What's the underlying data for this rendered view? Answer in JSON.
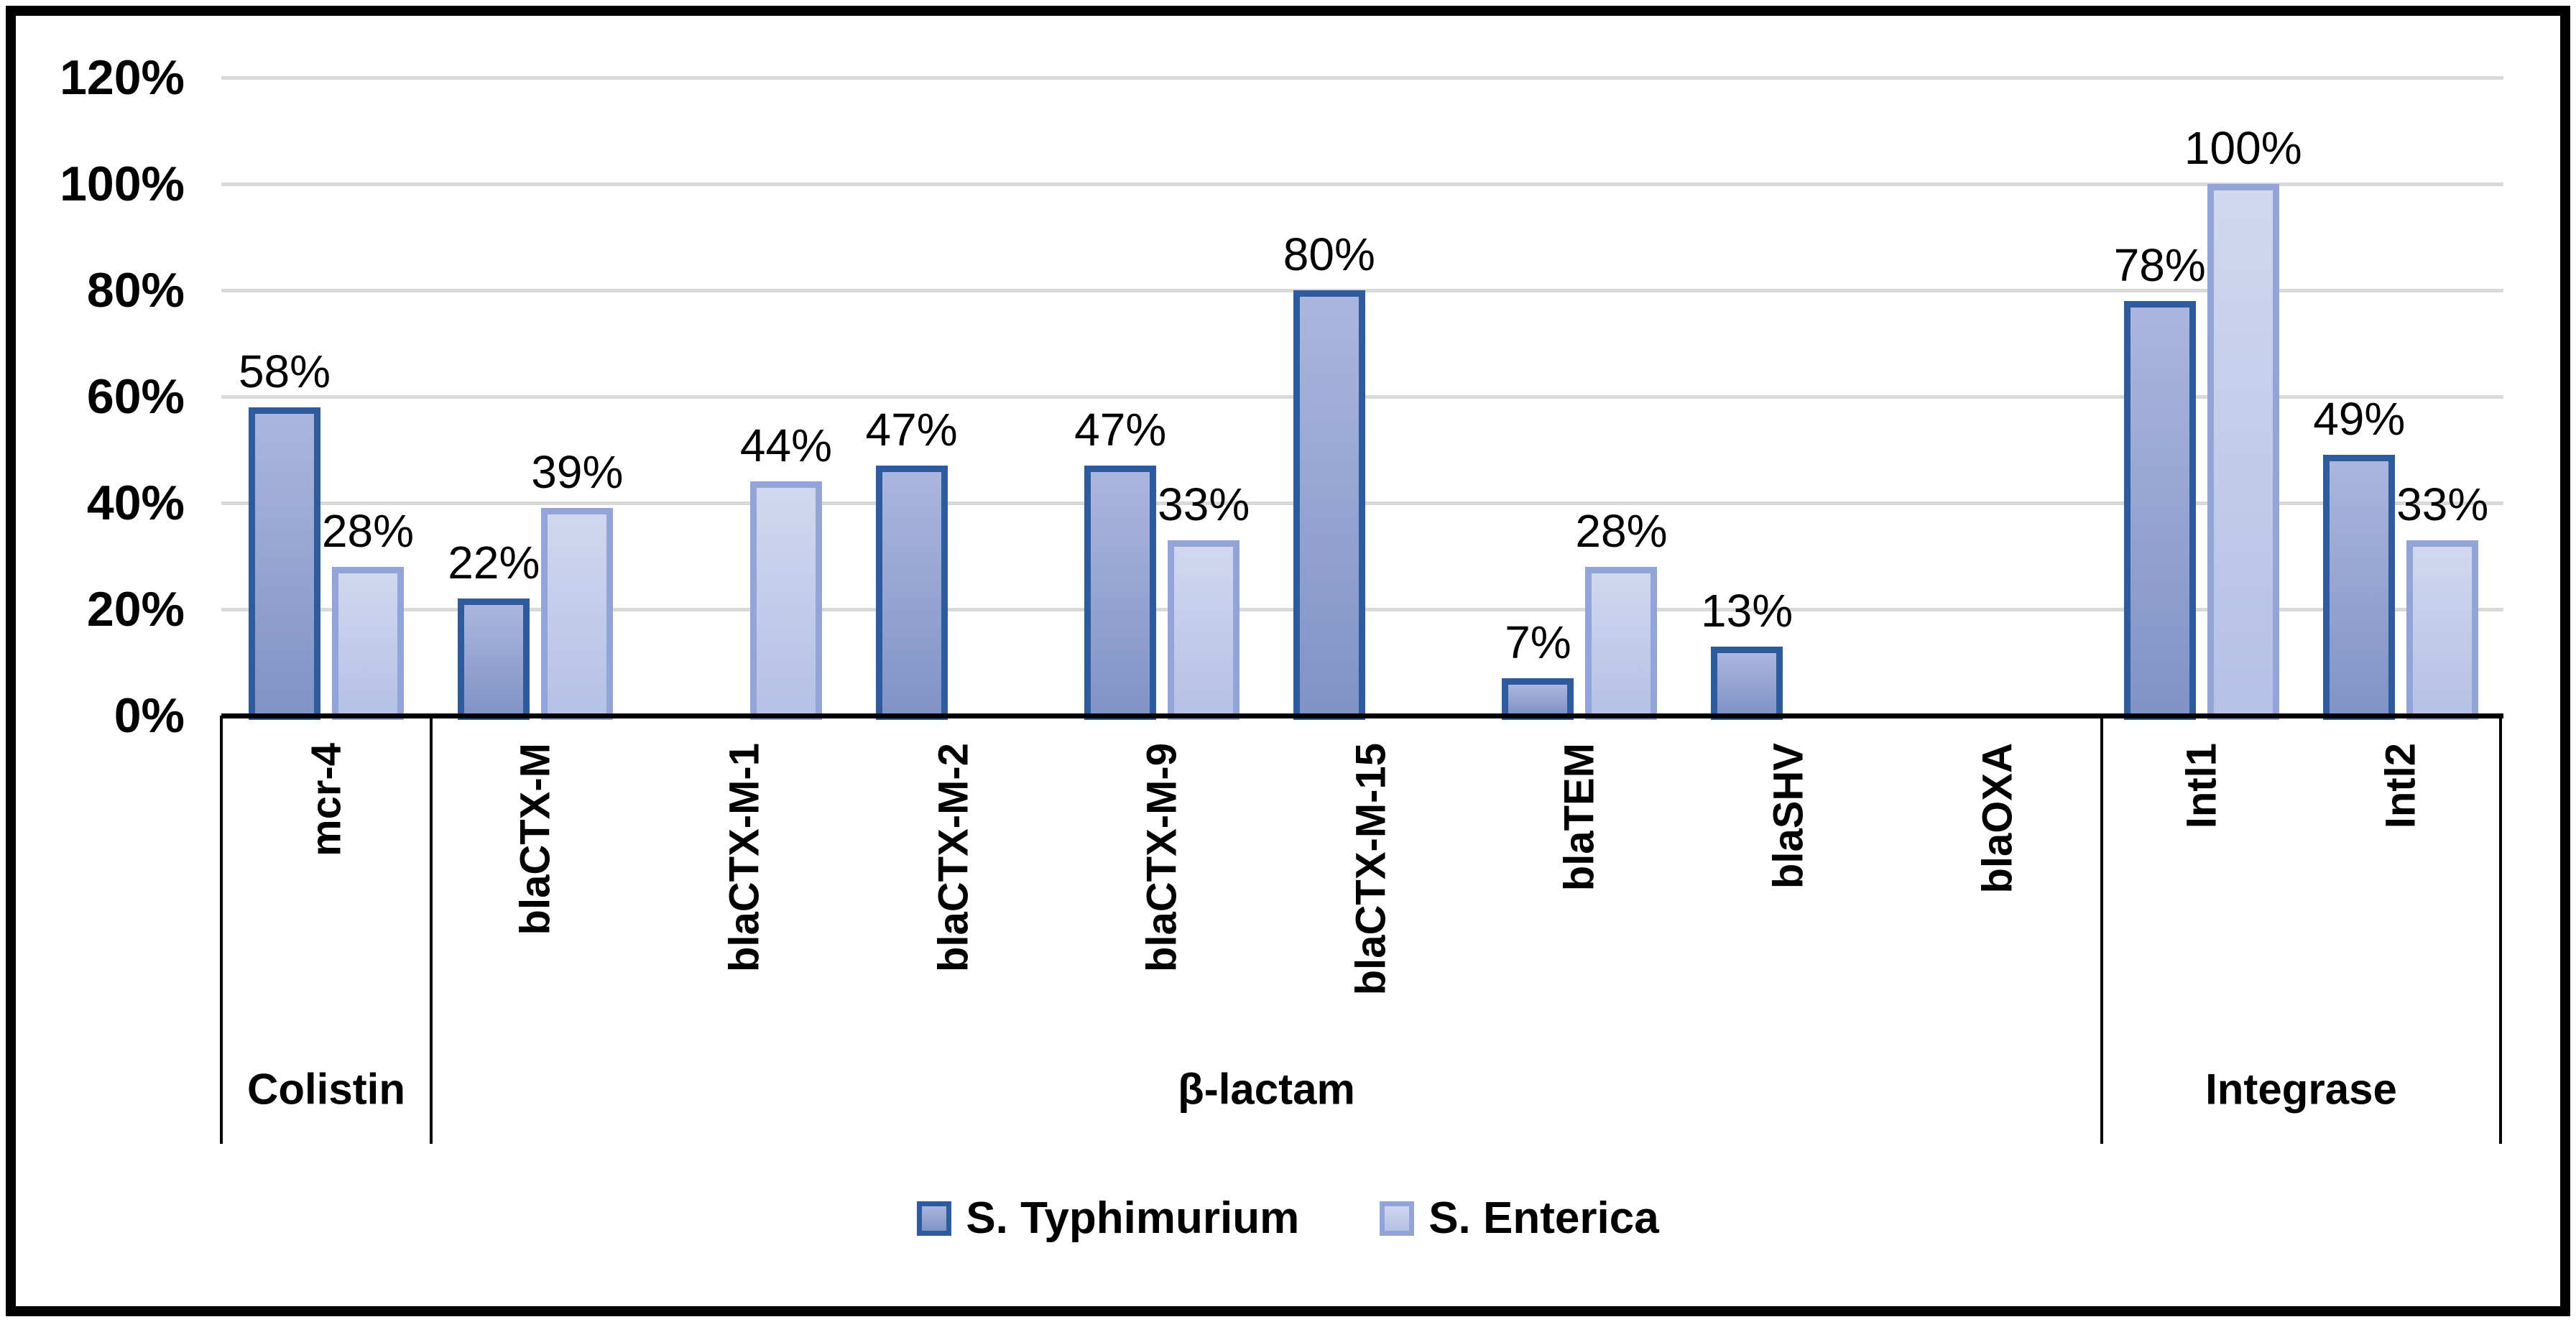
{
  "chart_data": {
    "type": "bar",
    "title": "",
    "xlabel": "",
    "ylabel": "",
    "ylim": [
      0,
      120
    ],
    "y_tick_labels": [
      "120%",
      "100%",
      "80%",
      "60%",
      "40%",
      "20%",
      "0%"
    ],
    "grid": true,
    "gridline_color": "#D9D9D9",
    "axis_color": "#000000",
    "legend_position": "bottom",
    "data_label_format": "percent",
    "categories": [
      "mcr-4",
      "blaCTX-M",
      "blaCTX-M-1",
      "blaCTX-M-2",
      "blaCTX-M-9",
      "blaCTX-M-15",
      "blaTEM",
      "blaSHV",
      "blaOXA",
      "Intl1",
      "Intl2"
    ],
    "groups": [
      {
        "label": "Colistin",
        "categories": [
          "mcr-4"
        ]
      },
      {
        "label": "β-lactam",
        "categories": [
          "blaCTX-M",
          "blaCTX-M-1",
          "blaCTX-M-2",
          "blaCTX-M-9",
          "blaCTX-M-15",
          "blaTEM",
          "blaSHV",
          "blaOXA"
        ]
      },
      {
        "label": "Integrase",
        "categories": [
          "Intl1",
          "Intl2"
        ]
      }
    ],
    "series": [
      {
        "name": "S. Typhimurium",
        "fill_top": "#AAB6DD",
        "fill_bottom": "#8093C7",
        "border": "#2E5B9E",
        "values": [
          58,
          22,
          null,
          47,
          47,
          80,
          7,
          13,
          null,
          78,
          49
        ]
      },
      {
        "name": "S. Enterica",
        "fill_top": "#D0D7EF",
        "fill_bottom": "#B5C1E5",
        "border": "#93A4D8",
        "values": [
          28,
          39,
          44,
          null,
          33,
          null,
          28,
          null,
          null,
          100,
          33
        ]
      }
    ]
  }
}
